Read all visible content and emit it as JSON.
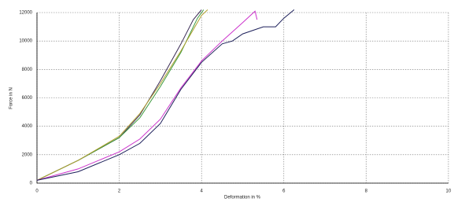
{
  "chart_data": {
    "type": "line",
    "x_label": "Deformation in %",
    "y_label": "Force in N",
    "xlim": [
      0,
      10
    ],
    "ylim": [
      0,
      12000
    ],
    "xticks": [
      0,
      2,
      4,
      6,
      8,
      10
    ],
    "yticks": [
      0,
      2000,
      4000,
      6000,
      8000,
      10000,
      12000
    ],
    "grid": true,
    "series": [
      {
        "color": "#3a2a55",
        "x": [
          0,
          0.5,
          1,
          1.5,
          2,
          2.5,
          3,
          3.5,
          3.8,
          4.0
        ],
        "values": [
          200,
          900,
          1600,
          2400,
          3200,
          4800,
          7200,
          9800,
          11500,
          12200
        ]
      },
      {
        "color": "#3c9a3c",
        "x": [
          0,
          1,
          2,
          2.5,
          3,
          3.5,
          3.9,
          4.05
        ],
        "values": [
          200,
          1600,
          3200,
          4600,
          6800,
          9200,
          11600,
          12200
        ]
      },
      {
        "color": "#b0a030",
        "x": [
          0,
          1,
          2,
          2.5,
          3,
          3.5,
          4.0,
          4.15
        ],
        "values": [
          200,
          1600,
          3300,
          4900,
          7000,
          9300,
          11800,
          12200
        ]
      },
      {
        "color": "#cc33cc",
        "x": [
          0,
          1,
          2,
          2.5,
          3,
          3.5,
          4,
          4.5,
          5,
          5.3,
          5.35
        ],
        "values": [
          200,
          1000,
          2200,
          3100,
          4500,
          6700,
          8600,
          10000,
          11300,
          12100,
          11500
        ]
      },
      {
        "color": "#1c1f5a",
        "x": [
          0,
          1,
          2,
          2.5,
          3,
          3.5,
          4,
          4.5,
          4.75,
          5,
          5.5,
          5.8,
          6,
          6.25
        ],
        "values": [
          200,
          800,
          2000,
          2800,
          4200,
          6600,
          8500,
          9800,
          10000,
          10500,
          11000,
          11000,
          11600,
          12200
        ]
      }
    ]
  }
}
